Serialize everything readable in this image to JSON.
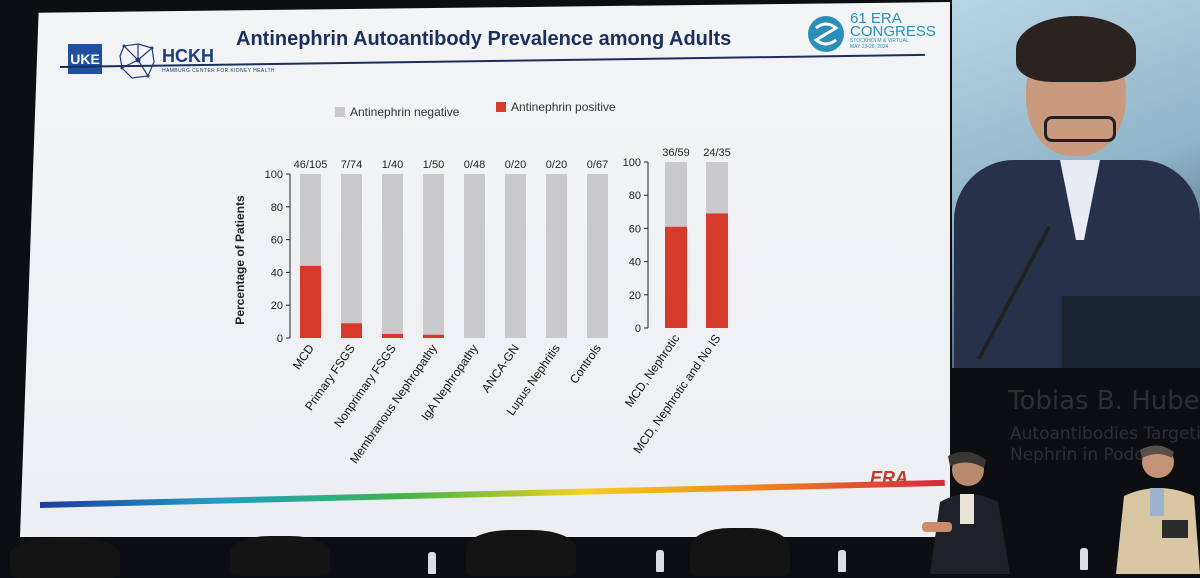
{
  "slide": {
    "title": "Antinephrin Autoantibody Prevalence among Adults",
    "logo_uke": "UKE",
    "logo_uke_sub": "HAMBURG",
    "logo_hckh": "HCKH",
    "logo_hckh_sub": "HAMBURG CENTER FOR KIDNEY HEALTH",
    "era_congress": "61 ERA CONGRESS",
    "era_congress_sub": "STOCKHOLM & VIRTUAL",
    "era_dates": "MAY 23-26, 2024",
    "era_footer": "ERA"
  },
  "speaker": {
    "name": "Tobias B. Hube",
    "talk_line1": "Autoantibodies Targeti",
    "talk_line2": "Nephrin in Podoop"
  },
  "colors": {
    "negative": "#c9c9cc",
    "positive": "#d63a2b",
    "title": "#1b2f5e"
  },
  "chart_data": [
    {
      "type": "bar",
      "stacked": true,
      "ylabel": "Percentage of Patients",
      "ylim": [
        0,
        100
      ],
      "yticks": [
        0,
        20,
        40,
        60,
        80,
        100
      ],
      "legend": [
        "Antinephrin negative",
        "Antinephrin positive"
      ],
      "legend_position": "top",
      "categories": [
        "MCD",
        "Primary FSGS",
        "Nonprimary FSGS",
        "Membranous Nephropathy",
        "IgA Nephropathy",
        "ANCA-GN",
        "Lupus Nephritis",
        "Controls"
      ],
      "counts": [
        "46/105",
        "7/74",
        "1/40",
        "1/50",
        "0/48",
        "0/20",
        "0/20",
        "0/67"
      ],
      "series": [
        {
          "name": "Antinephrin positive",
          "values": [
            44,
            9,
            2.5,
            2,
            0,
            0,
            0,
            0
          ]
        },
        {
          "name": "Antinephrin negative",
          "values": [
            56,
            91,
            97.5,
            98,
            100,
            100,
            100,
            100
          ]
        }
      ]
    },
    {
      "type": "bar",
      "stacked": true,
      "ylim": [
        0,
        100
      ],
      "yticks": [
        0,
        20,
        40,
        60,
        80,
        100
      ],
      "categories": [
        "MCD, Nephrotic",
        "MCD, Nephrotic and No IS"
      ],
      "counts": [
        "36/59",
        "24/35"
      ],
      "series": [
        {
          "name": "Antinephrin positive",
          "values": [
            61,
            69
          ]
        },
        {
          "name": "Antinephrin negative",
          "values": [
            39,
            31
          ]
        }
      ]
    }
  ]
}
